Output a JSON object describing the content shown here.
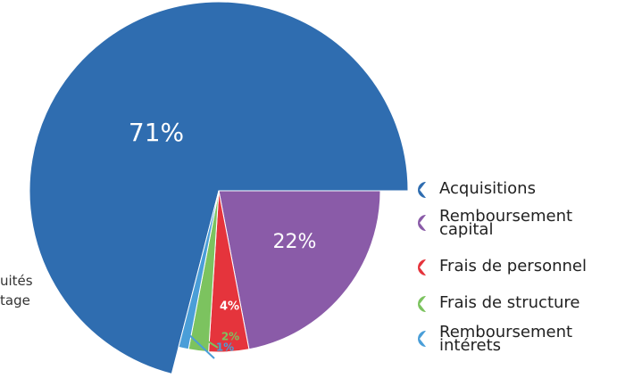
{
  "chart_data": {
    "type": "pie",
    "categories": [
      "Acquisitions",
      "Remboursement capital",
      "Frais de personnel",
      "Frais de structure",
      "Remboursement intérets"
    ],
    "values": [
      71,
      22,
      4,
      2,
      1
    ],
    "value_labels": [
      "71%",
      "22%",
      "4%",
      "2%",
      "1%"
    ],
    "colors": [
      "#2f6db0",
      "#8a5ba8",
      "#e5343c",
      "#7cc35f",
      "#4a9ed8"
    ],
    "annotations": [
      "uités",
      "tage"
    ]
  }
}
